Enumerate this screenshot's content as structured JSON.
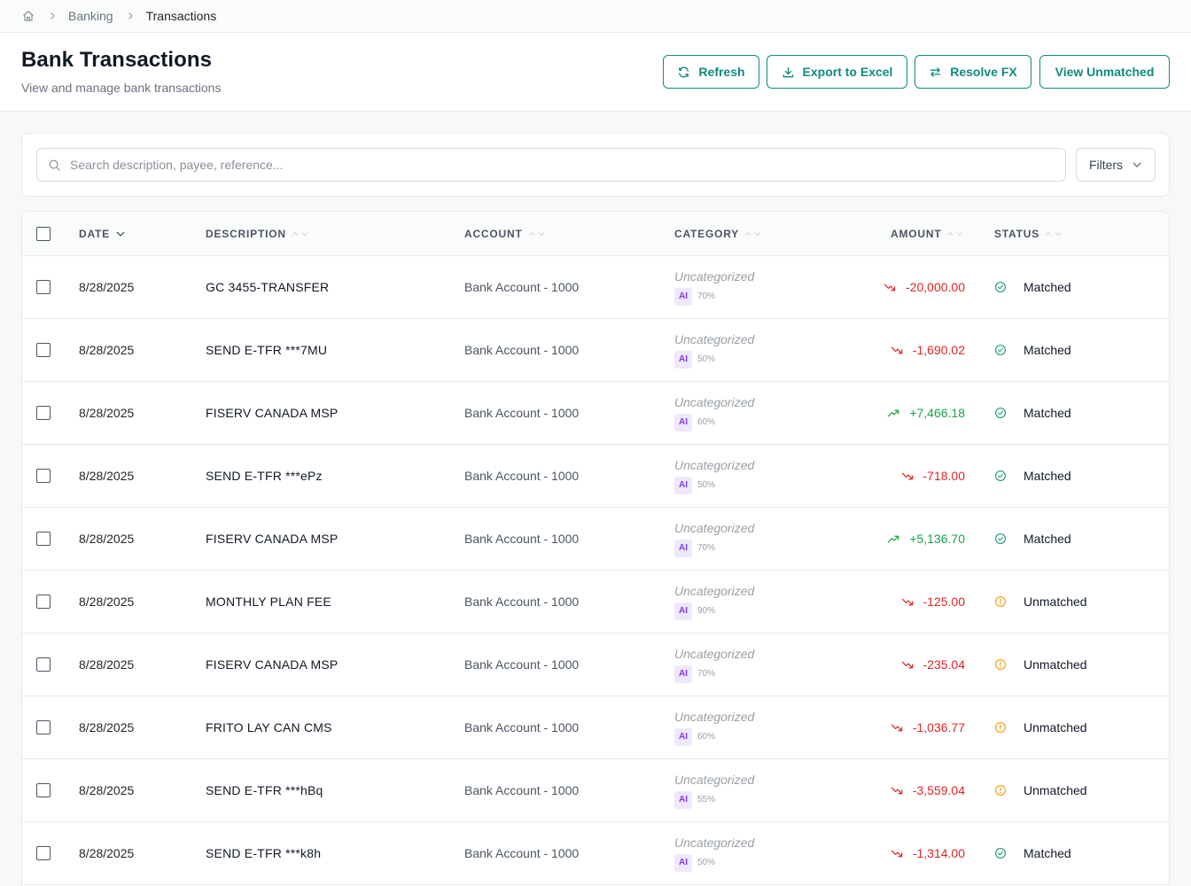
{
  "breadcrumb": {
    "items": [
      "Banking",
      "Transactions"
    ]
  },
  "header": {
    "title": "Bank Transactions",
    "subtitle": "View and manage bank transactions",
    "buttons": {
      "refresh": "Refresh",
      "export": "Export to Excel",
      "resolve_fx": "Resolve FX",
      "view_unmatched": "View Unmatched"
    }
  },
  "search": {
    "placeholder": "Search description, payee, reference...",
    "filters_label": "Filters"
  },
  "table": {
    "columns": {
      "date": "DATE",
      "description": "DESCRIPTION",
      "account": "ACCOUNT",
      "category": "CATEGORY",
      "amount": "AMOUNT",
      "status": "STATUS"
    },
    "ai_label": "AI",
    "rows": [
      {
        "date": "8/28/2025",
        "description": "GC 3455-TRANSFER",
        "account": "Bank Account - 1000",
        "category": "Uncategorized",
        "confidence": "70%",
        "amount": "-20,000.00",
        "direction": "down",
        "status": "Matched"
      },
      {
        "date": "8/28/2025",
        "description": "SEND E-TFR ***7MU",
        "account": "Bank Account - 1000",
        "category": "Uncategorized",
        "confidence": "50%",
        "amount": "-1,690.02",
        "direction": "down",
        "status": "Matched"
      },
      {
        "date": "8/28/2025",
        "description": "FISERV CANADA MSP",
        "account": "Bank Account - 1000",
        "category": "Uncategorized",
        "confidence": "60%",
        "amount": "+7,466.18",
        "direction": "up",
        "status": "Matched"
      },
      {
        "date": "8/28/2025",
        "description": "SEND E-TFR ***ePz",
        "account": "Bank Account - 1000",
        "category": "Uncategorized",
        "confidence": "50%",
        "amount": "-718.00",
        "direction": "down",
        "status": "Matched"
      },
      {
        "date": "8/28/2025",
        "description": "FISERV CANADA MSP",
        "account": "Bank Account - 1000",
        "category": "Uncategorized",
        "confidence": "70%",
        "amount": "+5,136.70",
        "direction": "up",
        "status": "Matched"
      },
      {
        "date": "8/28/2025",
        "description": "MONTHLY PLAN FEE",
        "account": "Bank Account - 1000",
        "category": "Uncategorized",
        "confidence": "90%",
        "amount": "-125.00",
        "direction": "down",
        "status": "Unmatched"
      },
      {
        "date": "8/28/2025",
        "description": "FISERV CANADA MSP",
        "account": "Bank Account - 1000",
        "category": "Uncategorized",
        "confidence": "70%",
        "amount": "-235.04",
        "direction": "down",
        "status": "Unmatched"
      },
      {
        "date": "8/28/2025",
        "description": "FRITO LAY CAN CMS",
        "account": "Bank Account - 1000",
        "category": "Uncategorized",
        "confidence": "60%",
        "amount": "-1,036.77",
        "direction": "down",
        "status": "Unmatched"
      },
      {
        "date": "8/28/2025",
        "description": "SEND E-TFR ***hBq",
        "account": "Bank Account - 1000",
        "category": "Uncategorized",
        "confidence": "55%",
        "amount": "-3,559.04",
        "direction": "down",
        "status": "Unmatched"
      },
      {
        "date": "8/28/2025",
        "description": "SEND E-TFR ***k8h",
        "account": "Bank Account - 1000",
        "category": "Uncategorized",
        "confidence": "50%",
        "amount": "-1,314.00",
        "direction": "down",
        "status": "Matched"
      }
    ]
  },
  "colors": {
    "accent": "#0f8b7e",
    "negative": "#dc2626",
    "positive": "#16a34a",
    "matched": "#22a06b",
    "unmatched": "#f59e0b",
    "ai_badge": "#7c3aed"
  },
  "icons": {
    "home": "home-icon",
    "refresh": "refresh-icon",
    "export": "download-icon",
    "resolve_fx": "swap-icon",
    "search": "search-icon",
    "filters": "chevron-down-icon",
    "negative": "trending-down-icon",
    "positive": "trending-up-icon",
    "matched": "check-circle-icon",
    "unmatched": "alert-circle-icon"
  }
}
